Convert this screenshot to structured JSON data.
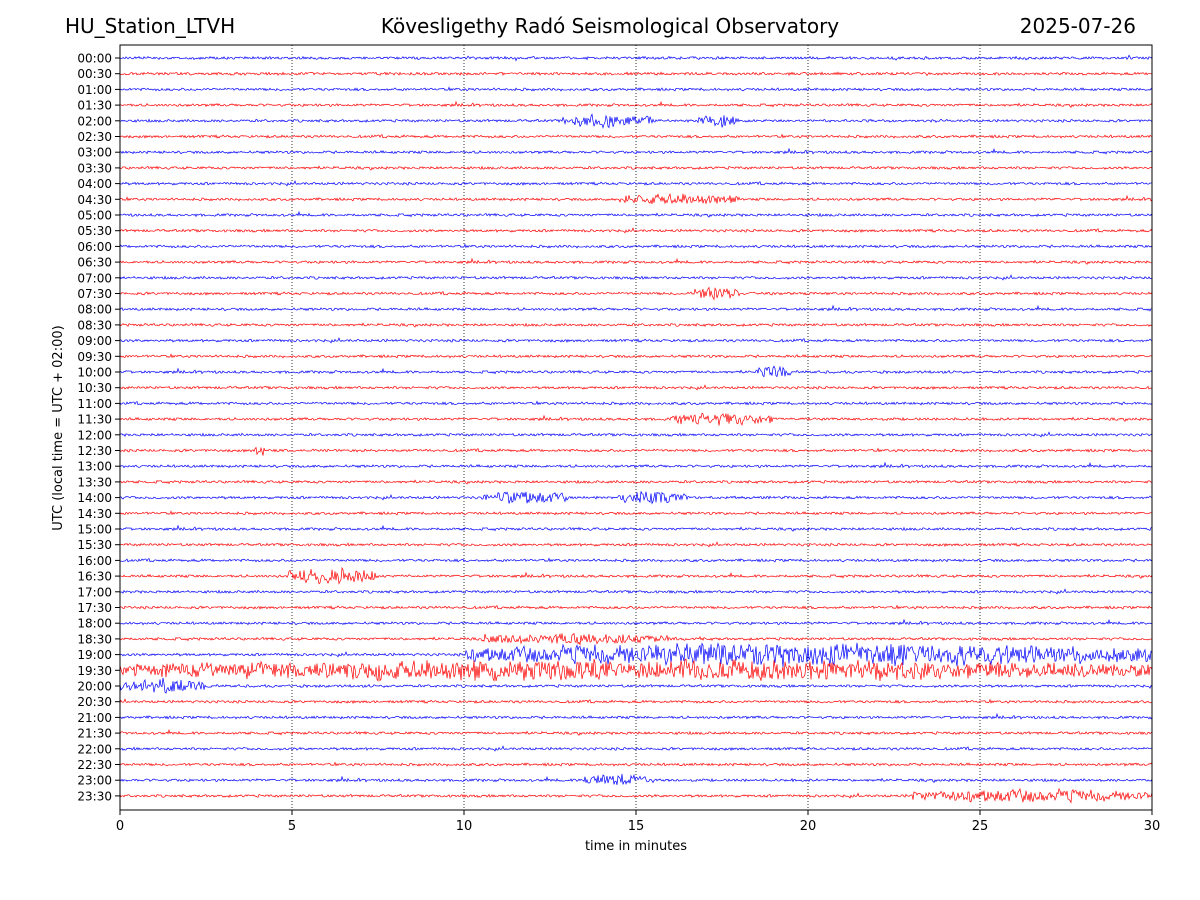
{
  "header": {
    "station": "HU_Station_LTVH",
    "title": "Kövesligethy Radó Seismological Observatory",
    "date": "2025-07-26"
  },
  "chart_data": {
    "type": "line",
    "title": "Kövesligethy Radó Seismological Observatory",
    "xlabel": "time in minutes",
    "ylabel": "UTC (local time = UTC + 02:00)",
    "xlim": [
      0,
      30
    ],
    "xticks": [
      0,
      5,
      10,
      15,
      20,
      25,
      30
    ],
    "grid": "vertical dotted lines at x ticks",
    "colors": [
      "#0000ff",
      "#ff0000"
    ],
    "traces": [
      "00:00",
      "00:30",
      "01:00",
      "01:30",
      "02:00",
      "02:30",
      "03:00",
      "03:30",
      "04:00",
      "04:30",
      "05:00",
      "05:30",
      "06:00",
      "06:30",
      "07:00",
      "07:30",
      "08:00",
      "08:30",
      "09:00",
      "09:30",
      "10:00",
      "10:30",
      "11:00",
      "11:30",
      "12:00",
      "12:30",
      "13:00",
      "13:30",
      "14:00",
      "14:30",
      "15:00",
      "15:30",
      "16:00",
      "16:30",
      "17:00",
      "17:30",
      "18:00",
      "18:30",
      "19:00",
      "19:30",
      "20:00",
      "20:30",
      "21:00",
      "21:30",
      "22:00",
      "22:30",
      "23:00",
      "23:30"
    ],
    "activity_bursts": [
      {
        "trace": "02:00",
        "start": 12.8,
        "end": 15.5,
        "amplitude": 0.45
      },
      {
        "trace": "02:00",
        "start": 16.8,
        "end": 18.0,
        "amplitude": 0.45
      },
      {
        "trace": "04:30",
        "start": 14.5,
        "end": 18.0,
        "amplitude": 0.35
      },
      {
        "trace": "07:30",
        "start": 16.5,
        "end": 18.0,
        "amplitude": 0.4
      },
      {
        "trace": "10:00",
        "start": 18.5,
        "end": 19.5,
        "amplitude": 0.45
      },
      {
        "trace": "11:30",
        "start": 16.0,
        "end": 19.0,
        "amplitude": 0.45
      },
      {
        "trace": "12:30",
        "start": 3.9,
        "end": 4.2,
        "amplitude": 0.5
      },
      {
        "trace": "14:00",
        "start": 10.5,
        "end": 13.0,
        "amplitude": 0.45
      },
      {
        "trace": "14:00",
        "start": 14.5,
        "end": 16.5,
        "amplitude": 0.45
      },
      {
        "trace": "16:30",
        "start": 4.9,
        "end": 7.5,
        "amplitude": 0.7
      },
      {
        "trace": "18:30",
        "start": 10.5,
        "end": 16.0,
        "amplitude": 0.35
      },
      {
        "trace": "19:00",
        "start": 10.0,
        "end": 30.0,
        "amplitude": 0.9
      },
      {
        "trace": "19:30",
        "start": 0.0,
        "end": 30.0,
        "amplitude": 0.8
      },
      {
        "trace": "20:00",
        "start": 0.0,
        "end": 2.5,
        "amplitude": 0.5
      },
      {
        "trace": "23:00",
        "start": 13.5,
        "end": 15.5,
        "amplitude": 0.4
      },
      {
        "trace": "23:30",
        "start": 23.0,
        "end": 30.0,
        "amplitude": 0.45
      }
    ]
  }
}
